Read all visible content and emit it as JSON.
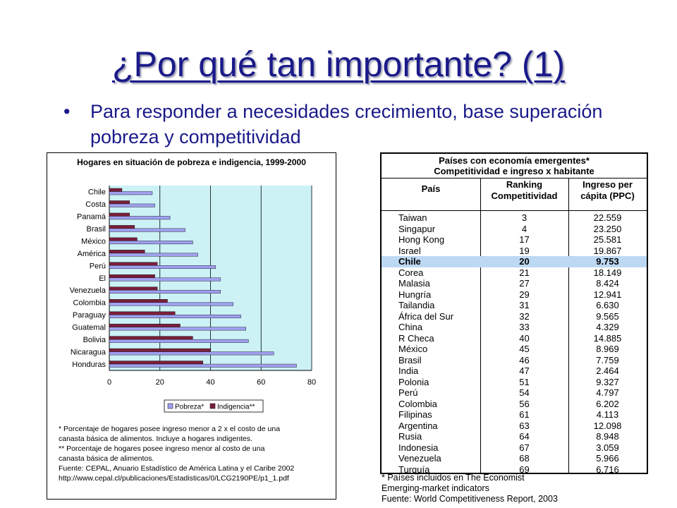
{
  "slide": {
    "title": "¿Por qué tan importante? (1)",
    "bullet": "•",
    "bullet_text": "Para responder a necesidades crecimiento, base superación pobreza y competitividad"
  },
  "chart_data": {
    "type": "bar",
    "title": "Hogares en situación de pobreza e indigencia, 1999-2000",
    "categories": [
      "Chile",
      "Costa",
      "Panamá",
      "Brasil",
      "México",
      "América",
      "Perú",
      "El",
      "Venezuela",
      "Colombia",
      "Paraguay",
      "Guatemal",
      "Bolivia",
      "Nicaragua",
      "Honduras"
    ],
    "series": [
      {
        "name": "Pobreza*",
        "color": "#a0a0f0",
        "values": [
          17,
          18,
          24,
          30,
          33,
          35,
          42,
          44,
          44,
          49,
          52,
          54,
          55,
          65,
          74
        ]
      },
      {
        "name": "Indigencia**",
        "color": "#7a1f3a",
        "values": [
          5,
          8,
          8,
          10,
          11,
          14,
          19,
          18,
          19,
          23,
          26,
          28,
          33,
          40,
          37
        ]
      }
    ],
    "xlim": [
      0,
      80
    ],
    "xticks": [
      "0",
      "20",
      "40",
      "60",
      "80"
    ],
    "orientation": "horizontal",
    "legend_position": "bottom"
  },
  "footnotes": [
    "* Porcentaje de hogares posee ingreso menor a 2 x el costo de una",
    "canasta básica de alimentos. Incluye a hogares indigentes.",
    "**  Porcentaje de hogares posee ingreso menor al costo de una",
    "canasta básica de alimentos.",
    "Fuente: CEPAL, Anuario Estadístico de América Latina y el Caribe 2002",
    "http://www.cepal.cl/publicaciones/Estadisticas/0/LCG2190PE/p1_1.pdf"
  ],
  "table": {
    "title1": "Países con economía emergentes*",
    "title2": "Competitividad e ingreso x habitante",
    "headers": [
      "País",
      "Ranking Competitividad",
      "Ingreso per cápita (PPC)"
    ],
    "highlight_color": "#bcd8f3",
    "rows": [
      [
        "Taiwan",
        "3",
        "22.559"
      ],
      [
        "Singapur",
        "4",
        "23.250"
      ],
      [
        "Hong Kong",
        "17",
        "25.581"
      ],
      [
        "Israel",
        "19",
        "19.867"
      ],
      [
        "Chile",
        "20",
        "9.753"
      ],
      [
        "Corea",
        "21",
        "18.149"
      ],
      [
        "Malasia",
        "27",
        "8.424"
      ],
      [
        "Hungría",
        "29",
        "12.941"
      ],
      [
        "Tailandia",
        "31",
        "6.630"
      ],
      [
        "África del Sur",
        "32",
        "9.565"
      ],
      [
        "China",
        "33",
        "4.329"
      ],
      [
        "R Checa",
        "40",
        "14.885"
      ],
      [
        "México",
        "45",
        "8.969"
      ],
      [
        "Brasil",
        "46",
        "7.759"
      ],
      [
        "India",
        "47",
        "2.464"
      ],
      [
        "Polonia",
        "51",
        "9.327"
      ],
      [
        "Perú",
        "54",
        "4.797"
      ],
      [
        "Colombia",
        "56",
        "6.202"
      ],
      [
        "Filipinas",
        "61",
        "4.113"
      ],
      [
        "Argentina",
        "63",
        "12.098"
      ],
      [
        "Rusia",
        "64",
        "8.948"
      ],
      [
        "Indonesia",
        "67",
        "3.059"
      ],
      [
        "Venezuela",
        "68",
        "5.966"
      ],
      [
        "Turquía",
        "69",
        "6.716"
      ]
    ],
    "highlight_row": "Chile",
    "notes": [
      "* Países incluidos en The Economist",
      "Emerging-market indicators",
      "Fuente: World Competitiveness Report, 2003"
    ]
  }
}
